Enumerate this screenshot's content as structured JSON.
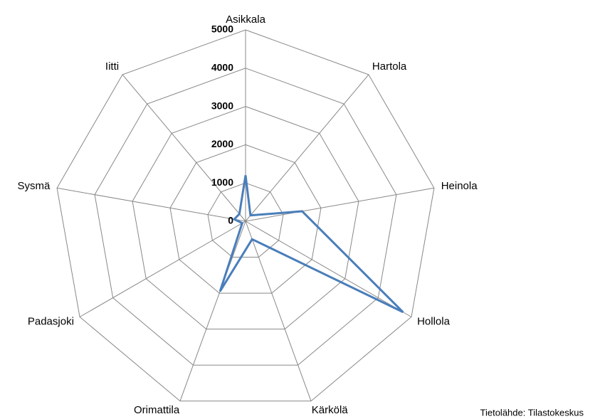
{
  "chart_data": {
    "type": "radar",
    "categories": [
      "Asikkala",
      "Hartola",
      "Heinola",
      "Hollola",
      "Kärkölä",
      "Orimattila",
      "Padasjoki",
      "Sysmä",
      "Iitti"
    ],
    "values": [
      1200,
      200,
      1500,
      4750,
      500,
      1950,
      100,
      300,
      250
    ],
    "color": "#4a7ebb",
    "ylim": [
      0,
      5000
    ],
    "yticks": [
      0,
      1000,
      2000,
      3000,
      4000,
      5000
    ],
    "grid": true,
    "source": "Tietolähde: Tilastokeskus"
  }
}
